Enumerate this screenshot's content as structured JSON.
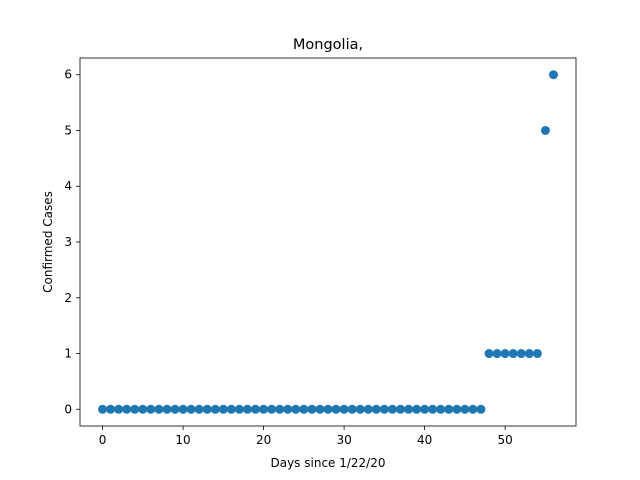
{
  "chart_data": {
    "type": "scatter",
    "title": "Mongolia,",
    "xlabel": "Days since 1/22/20",
    "ylabel": "Confirmed Cases",
    "xlim": [
      -2.8,
      58.8
    ],
    "ylim": [
      -0.3,
      6.3
    ],
    "xticks": [
      0,
      10,
      20,
      30,
      40,
      50
    ],
    "yticks": [
      0,
      1,
      2,
      3,
      4,
      5,
      6
    ],
    "grid": false,
    "color": "#1f77b4",
    "x": [
      0,
      1,
      2,
      3,
      4,
      5,
      6,
      7,
      8,
      9,
      10,
      11,
      12,
      13,
      14,
      15,
      16,
      17,
      18,
      19,
      20,
      21,
      22,
      23,
      24,
      25,
      26,
      27,
      28,
      29,
      30,
      31,
      32,
      33,
      34,
      35,
      36,
      37,
      38,
      39,
      40,
      41,
      42,
      43,
      44,
      45,
      46,
      47,
      48,
      49,
      50,
      51,
      52,
      53,
      54,
      55,
      56
    ],
    "y": [
      0,
      0,
      0,
      0,
      0,
      0,
      0,
      0,
      0,
      0,
      0,
      0,
      0,
      0,
      0,
      0,
      0,
      0,
      0,
      0,
      0,
      0,
      0,
      0,
      0,
      0,
      0,
      0,
      0,
      0,
      0,
      0,
      0,
      0,
      0,
      0,
      0,
      0,
      0,
      0,
      0,
      0,
      0,
      0,
      0,
      0,
      0,
      0,
      1,
      1,
      1,
      1,
      1,
      1,
      1,
      5,
      6
    ]
  }
}
